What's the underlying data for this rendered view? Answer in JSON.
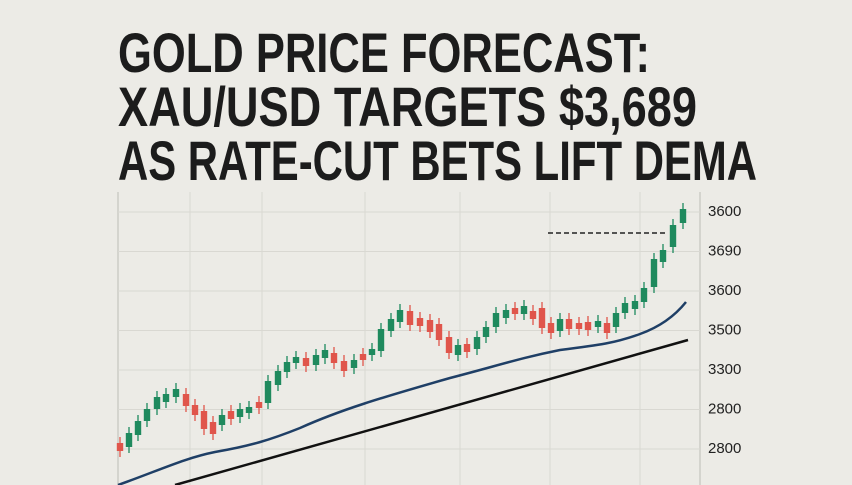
{
  "headline": {
    "lines": [
      "GOLD PRICE FORECAST:",
      "XAU/USD TARGETS $3,689",
      "AS RATE-CUT BETS LIFT DEMA"
    ]
  },
  "axis": {
    "labels": [
      "3600",
      "3690",
      "3600",
      "3500",
      "3300",
      "2800",
      "2800"
    ]
  }
}
